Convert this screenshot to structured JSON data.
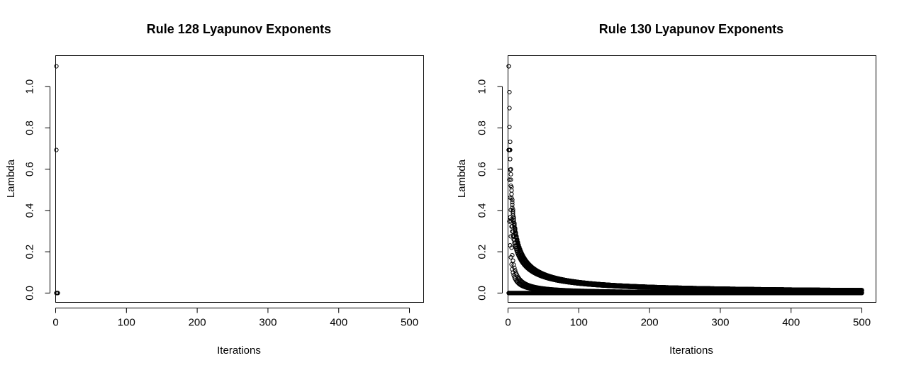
{
  "chart_data": [
    {
      "type": "scatter",
      "title": "Rule 128 Lyapunov Exponents",
      "xlabel": "Iterations",
      "ylabel": "Lambda",
      "xlim": [
        0,
        520
      ],
      "ylim": [
        -0.045,
        1.15
      ],
      "xticks": [
        0,
        100,
        200,
        300,
        400,
        500
      ],
      "xtick_labels": [
        "0",
        "100",
        "200",
        "300",
        "400",
        "500"
      ],
      "yticks": [
        0.0,
        0.2,
        0.4,
        0.6,
        0.8,
        1.0
      ],
      "ytick_labels": [
        "0.0",
        "0.2",
        "0.4",
        "0.6",
        "0.8",
        "1.0"
      ],
      "marker": "open-circle",
      "points": [
        {
          "x": 1,
          "y": 1.0986
        },
        {
          "x": 1,
          "y": 0.6931
        },
        {
          "x": 1,
          "y": 0.0
        },
        {
          "x": 2,
          "y": 0.0
        },
        {
          "x": 3,
          "y": 0.0
        }
      ]
    },
    {
      "type": "scatter",
      "title": "Rule 130 Lyapunov Exponents",
      "xlabel": "Iterations",
      "ylabel": "Lambda",
      "xlim": [
        0,
        520
      ],
      "ylim": [
        -0.045,
        1.15
      ],
      "xticks": [
        0,
        100,
        200,
        300,
        400,
        500
      ],
      "xtick_labels": [
        "0",
        "100",
        "200",
        "300",
        "400",
        "500"
      ],
      "yticks": [
        0.0,
        0.2,
        0.4,
        0.6,
        0.8,
        1.0
      ],
      "ytick_labels": [
        "0.0",
        "0.2",
        "0.4",
        "0.6",
        "0.8",
        "1.0"
      ],
      "marker": "open-circle",
      "iterations": [
        1,
        500
      ],
      "series": [
        {
          "formula": "ln(3)/n",
          "values_at": {
            "1": 1.0986,
            "10": 0.1099,
            "100": 0.011,
            "500": 0.0022
          }
        },
        {
          "formula": "ln(2)/n",
          "values_at": {
            "1": 0.6931,
            "10": 0.0693,
            "100": 0.0069,
            "500": 0.0014
          }
        },
        {
          "formula": "ln(2n)/n",
          "values_at": {
            "1": 0.6931,
            "10": 0.2996,
            "100": 0.053,
            "500": 0.0138
          }
        },
        {
          "formula": "ln(2n+1)/n",
          "values_at": {
            "1": 1.0986,
            "10": 0.3045,
            "100": 0.053,
            "500": 0.0138
          }
        },
        {
          "formula": "ln(n)/n",
          "values_at": {
            "2": 0.3466,
            "10": 0.2303,
            "100": 0.0461,
            "500": 0.0124
          }
        },
        {
          "formula": "ln(n+1)/n",
          "values_at": {
            "1": 0.6931,
            "10": 0.2398,
            "100": 0.0462,
            "500": 0.0124
          }
        },
        {
          "formula": "ln(2n+2)/n",
          "values_at": {
            "1": 1.3863,
            "10": 0.3091,
            "100": 0.0531,
            "500": 0.0138
          }
        },
        {
          "formula": "ln(2n+3)/n",
          "values_at": {
            "1": 1.6094,
            "10": 0.3135,
            "100": 0.0532,
            "500": 0.0138
          }
        },
        {
          "formula": "0",
          "values_at": {
            "1": 0.0,
            "500": 0.0
          }
        }
      ]
    }
  ]
}
